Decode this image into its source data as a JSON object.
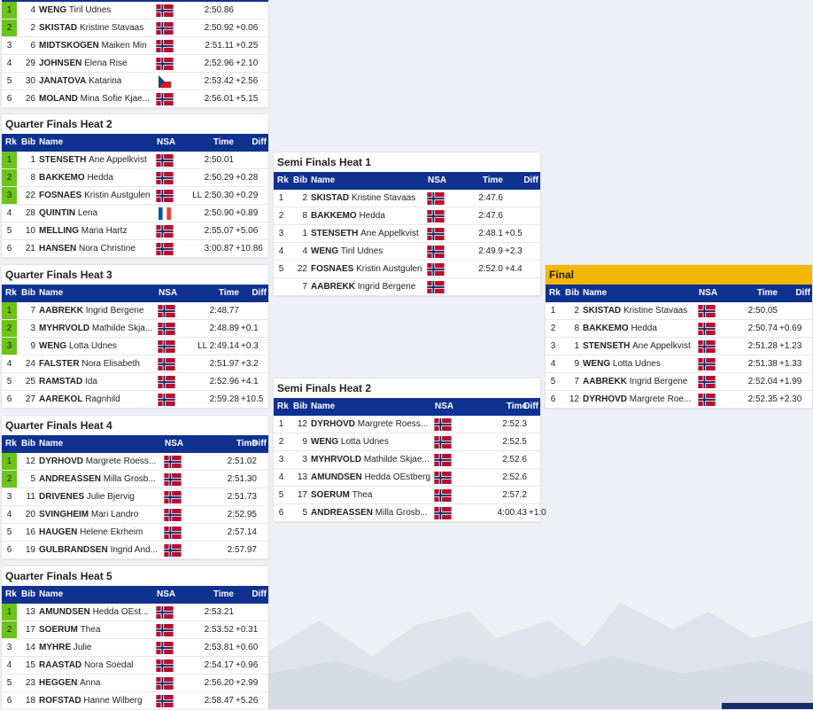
{
  "columns": [
    "Rk",
    "Bib",
    "Name",
    "NSA",
    "Time",
    "Diff"
  ],
  "heats": [
    {
      "rows": [
        {
          "rank": 1,
          "bib": 4,
          "last": "WENG",
          "first": "Tiril Udnes",
          "flag": "NOR",
          "time": "2:50.86",
          "qualified": true
        },
        {
          "rank": 2,
          "bib": 2,
          "last": "SKISTAD",
          "first": "Kristine Stavaas",
          "flag": "NOR",
          "time": "2:50.92",
          "diff": "+0.06",
          "qualified": true
        },
        {
          "rank": 3,
          "bib": 6,
          "last": "MIDTSKOGEN",
          "first": "Maiken Min",
          "flag": "NOR",
          "time": "2:51.11",
          "diff": "+0.25"
        },
        {
          "rank": 4,
          "bib": 29,
          "last": "JOHNSEN",
          "first": "Elena Rise",
          "flag": "NOR",
          "time": "2:52.96",
          "diff": "+2.10"
        },
        {
          "rank": 5,
          "bib": 30,
          "last": "JANATOVA",
          "first": "Katarina",
          "flag": "CZE",
          "time": "2:53.42",
          "diff": "+2.56"
        },
        {
          "rank": 6,
          "bib": 26,
          "last": "MOLAND",
          "first": "Mina Sofie Kjae...",
          "flag": "NOR",
          "time": "2:56.01",
          "diff": "+5.15"
        }
      ]
    },
    {
      "title": "Quarter Finals Heat 2",
      "rows": [
        {
          "rank": 1,
          "bib": 1,
          "last": "STENSETH",
          "first": "Ane Appelkvist",
          "flag": "NOR",
          "time": "2:50.01",
          "qualified": true
        },
        {
          "rank": 2,
          "bib": 8,
          "last": "BAKKEMO",
          "first": "Hedda",
          "flag": "NOR",
          "time": "2:50.29",
          "diff": "+0.28",
          "qualified": true
        },
        {
          "rank": 3,
          "bib": 22,
          "last": "FOSNAES",
          "first": "Kristin Austgulen",
          "flag": "NOR",
          "time": "LL 2:50.30",
          "diff": "+0.29",
          "qualified": true
        },
        {
          "rank": 4,
          "bib": 28,
          "last": "QUINTIN",
          "first": "Lena",
          "flag": "FRA",
          "time": "2:50.90",
          "diff": "+0.89"
        },
        {
          "rank": 5,
          "bib": 10,
          "last": "MELLING",
          "first": "Maria Hartz",
          "flag": "NOR",
          "time": "2:55.07",
          "diff": "+5.06"
        },
        {
          "rank": 6,
          "bib": 21,
          "last": "HANSEN",
          "first": "Nora Christine",
          "flag": "NOR",
          "time": "3:00.87",
          "diff": "+10.86"
        }
      ]
    },
    {
      "title": "Quarter Finals Heat 3",
      "rows": [
        {
          "rank": 1,
          "bib": 7,
          "last": "AABREKK",
          "first": "Ingrid Bergene",
          "flag": "NOR",
          "time": "2:48.77",
          "qualified": true
        },
        {
          "rank": 2,
          "bib": 3,
          "last": "MYHRVOLD",
          "first": "Mathilde Skja...",
          "flag": "NOR",
          "time": "2:48.89",
          "diff": "+0.1",
          "qualified": true
        },
        {
          "rank": 3,
          "bib": 9,
          "last": "WENG",
          "first": "Lotta Udnes",
          "flag": "NOR",
          "time": "LL 2:49.14",
          "diff": "+0.3",
          "qualified": true
        },
        {
          "rank": 4,
          "bib": 24,
          "last": "FALSTER",
          "first": "Nora Elisabeth",
          "flag": "NOR",
          "time": "2:51.97",
          "diff": "+3.2"
        },
        {
          "rank": 5,
          "bib": 25,
          "last": "RAMSTAD",
          "first": "Ida",
          "flag": "NOR",
          "time": "2:52.96",
          "diff": "+4.1"
        },
        {
          "rank": 6,
          "bib": 27,
          "last": "AAREKOL",
          "first": "Ragnhild",
          "flag": "NOR",
          "time": "2:59.28",
          "diff": "+10.5"
        }
      ]
    },
    {
      "title": "Quarter Finals Heat 4",
      "rows": [
        {
          "rank": 1,
          "bib": 12,
          "last": "DYRHOVD",
          "first": "Margrete Roess...",
          "flag": "NOR",
          "time": "2:51.02",
          "qualified": true
        },
        {
          "rank": 2,
          "bib": 5,
          "last": "ANDREASSEN",
          "first": "Milla Grosb...",
          "flag": "NOR",
          "time": "2:51.30",
          "qualified": true
        },
        {
          "rank": 3,
          "bib": 11,
          "last": "DRIVENES",
          "first": "Julie Bjervig",
          "flag": "NOR",
          "time": "2:51.73"
        },
        {
          "rank": 4,
          "bib": 20,
          "last": "SVINGHEIM",
          "first": "Mari Landro",
          "flag": "NOR",
          "time": "2:52.95"
        },
        {
          "rank": 5,
          "bib": 16,
          "last": "HAUGEN",
          "first": "Helene Ekrheim",
          "flag": "NOR",
          "time": "2:57.14"
        },
        {
          "rank": 6,
          "bib": 19,
          "last": "GULBRANDSEN",
          "first": "Ingrid And...",
          "flag": "NOR",
          "time": "2:57.97"
        }
      ]
    },
    {
      "title": "Quarter Finals Heat 5",
      "rows": [
        {
          "rank": 1,
          "bib": 13,
          "last": "AMUNDSEN",
          "first": "Hedda OEst...",
          "flag": "NOR",
          "time": "2:53.21",
          "qualified": true
        },
        {
          "rank": 2,
          "bib": 17,
          "last": "SOERUM",
          "first": "Thea",
          "flag": "NOR",
          "time": "2:53.52",
          "diff": "+0.31",
          "qualified": true
        },
        {
          "rank": 3,
          "bib": 14,
          "last": "MYHRE",
          "first": "Julie",
          "flag": "NOR",
          "time": "2:53.81",
          "diff": "+0.60"
        },
        {
          "rank": 4,
          "bib": 15,
          "last": "RAASTAD",
          "first": "Nora Soedal",
          "flag": "NOR",
          "time": "2:54.17",
          "diff": "+0.96"
        },
        {
          "rank": 5,
          "bib": 23,
          "last": "HEGGEN",
          "first": "Anna",
          "flag": "NOR",
          "time": "2:56.20",
          "diff": "+2.99"
        },
        {
          "rank": 6,
          "bib": 18,
          "last": "ROFSTAD",
          "first": "Hanne Wilberg",
          "flag": "NOR",
          "time": "2:58.47",
          "diff": "+5.26"
        }
      ]
    },
    {
      "title": "Semi Finals Heat 1",
      "rows": [
        {
          "rank": 1,
          "bib": 2,
          "last": "SKISTAD",
          "first": "Kristine Stavaas",
          "flag": "NOR",
          "time": "2:47.6"
        },
        {
          "rank": 2,
          "bib": 8,
          "last": "BAKKEMO",
          "first": "Hedda",
          "flag": "NOR",
          "time": "2:47.6"
        },
        {
          "rank": 3,
          "bib": 1,
          "last": "STENSETH",
          "first": "Ane Appelkvist",
          "flag": "NOR",
          "time": "2:48.1",
          "diff": "+0.5"
        },
        {
          "rank": 4,
          "bib": 4,
          "last": "WENG",
          "first": "Tiril Udnes",
          "flag": "NOR",
          "time": "2:49.9",
          "diff": "+2.3"
        },
        {
          "rank": 5,
          "bib": 22,
          "last": "FOSNAES",
          "first": "Kristin Austgulen",
          "flag": "NOR",
          "time": "2:52.0",
          "diff": "+4.4"
        },
        {
          "bib": 7,
          "last": "AABREKK",
          "first": "Ingrid Bergene",
          "flag": "NOR"
        }
      ]
    },
    {
      "title": "Semi Finals Heat 2",
      "rows": [
        {
          "rank": 1,
          "bib": 12,
          "last": "DYRHOVD",
          "first": "Margrete Roess...",
          "flag": "NOR",
          "time": "2:52.3"
        },
        {
          "rank": 2,
          "bib": 9,
          "last": "WENG",
          "first": "Lotta Udnes",
          "flag": "NOR",
          "time": "2:52.5"
        },
        {
          "rank": 3,
          "bib": 3,
          "last": "MYHRVOLD",
          "first": "Mathilde Skjae...",
          "flag": "NOR",
          "time": "2:52.6"
        },
        {
          "rank": 4,
          "bib": 13,
          "last": "AMUNDSEN",
          "first": "Hedda OEstberg",
          "flag": "NOR",
          "time": "2:52.6"
        },
        {
          "rank": 5,
          "bib": 17,
          "last": "SOERUM",
          "first": "Thea",
          "flag": "NOR",
          "time": "2:57.2"
        },
        {
          "rank": 6,
          "bib": 5,
          "last": "ANDREASSEN",
          "first": "Milla Grosb...",
          "flag": "NOR",
          "time": "4:00.43",
          "diff": "+1:0"
        }
      ]
    },
    {
      "title": "Final",
      "rows": [
        {
          "rank": 1,
          "bib": 2,
          "last": "SKISTAD",
          "first": "Kristine Stavaas",
          "flag": "NOR",
          "time": "2:50.05"
        },
        {
          "rank": 2,
          "bib": 8,
          "last": "BAKKEMO",
          "first": "Hedda",
          "flag": "NOR",
          "time": "2:50.74",
          "diff": "+0.69"
        },
        {
          "rank": 3,
          "bib": 1,
          "last": "STENSETH",
          "first": "Ane Appelkvist",
          "flag": "NOR",
          "time": "2:51.28",
          "diff": "+1.23"
        },
        {
          "rank": 4,
          "bib": 9,
          "last": "WENG",
          "first": "Lotta Udnes",
          "flag": "NOR",
          "time": "2:51.38",
          "diff": "+1.33"
        },
        {
          "rank": 5,
          "bib": 7,
          "last": "AABREKK",
          "first": "Ingrid Bergene",
          "flag": "NOR",
          "time": "2:52.04",
          "diff": "+1.99"
        },
        {
          "rank": 6,
          "bib": 12,
          "last": "DYRHOVD",
          "first": "Margrete Roe...",
          "flag": "NOR",
          "time": "2:52.35",
          "diff": "+2.30"
        }
      ]
    }
  ]
}
